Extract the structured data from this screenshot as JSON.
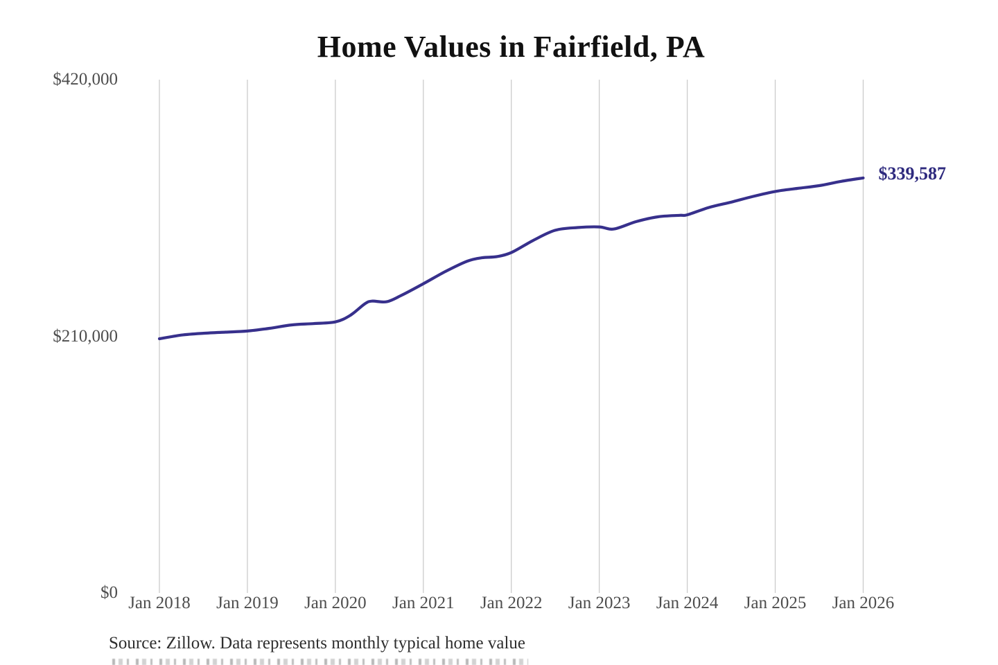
{
  "chart": {
    "title": "Home Values in Fairfield, PA",
    "source_note": "Source: Zillow. Data represents monthly typical home value",
    "end_label": "$339,587",
    "colors": {
      "line": "#37308c",
      "end_label": "#2e2a7e",
      "gridline": "#cbcbcb",
      "title": "#111111",
      "axis_label": "#4d4d4d",
      "source": "#2e2e2e",
      "background": "#ffffff"
    }
  },
  "chart_data": {
    "type": "line",
    "title": "Home Values in Fairfield, PA",
    "xlabel": "",
    "ylabel": "",
    "ylim": [
      0,
      420000
    ],
    "x_span_months": 96,
    "grid": "vertical-only",
    "legend": "none",
    "yticks": [
      {
        "label": "$420,000",
        "value": 420000
      },
      {
        "label": "$210,000",
        "value": 210000
      },
      {
        "label": "$0",
        "value": 0
      }
    ],
    "xticks": [
      "Jan 2018",
      "Jan 2019",
      "Jan 2020",
      "Jan 2021",
      "Jan 2022",
      "Jan 2023",
      "Jan 2024",
      "Jan 2025",
      "Jan 2026"
    ],
    "end_label": "$339,587",
    "end_value": 339587,
    "source": "Source: Zillow. Data represents monthly typical home value",
    "series": [
      {
        "name": "monthly typical home value",
        "points_format": "[months_since_jan_2018, usd]",
        "points": [
          [
            0,
            208000
          ],
          [
            3,
            211000
          ],
          [
            6,
            212500
          ],
          [
            9,
            213400
          ],
          [
            12,
            214300
          ],
          [
            15,
            216500
          ],
          [
            18,
            219300
          ],
          [
            21,
            220400
          ],
          [
            24,
            221800
          ],
          [
            26,
            227000
          ],
          [
            28,
            236500
          ],
          [
            29,
            238800
          ],
          [
            31,
            238300
          ],
          [
            33,
            243500
          ],
          [
            36,
            253000
          ],
          [
            39,
            263000
          ],
          [
            42,
            271500
          ],
          [
            44,
            274300
          ],
          [
            46,
            275200
          ],
          [
            48,
            278500
          ],
          [
            51,
            288500
          ],
          [
            54,
            296800
          ],
          [
            57,
            299000
          ],
          [
            60,
            299500
          ],
          [
            62,
            297800
          ],
          [
            65,
            303800
          ],
          [
            68,
            307800
          ],
          [
            71,
            309000
          ],
          [
            72,
            309400
          ],
          [
            75,
            315500
          ],
          [
            78,
            319800
          ],
          [
            81,
            324500
          ],
          [
            84,
            328500
          ],
          [
            87,
            331000
          ],
          [
            90,
            333300
          ],
          [
            93,
            336800
          ],
          [
            96,
            339587
          ]
        ]
      }
    ]
  }
}
